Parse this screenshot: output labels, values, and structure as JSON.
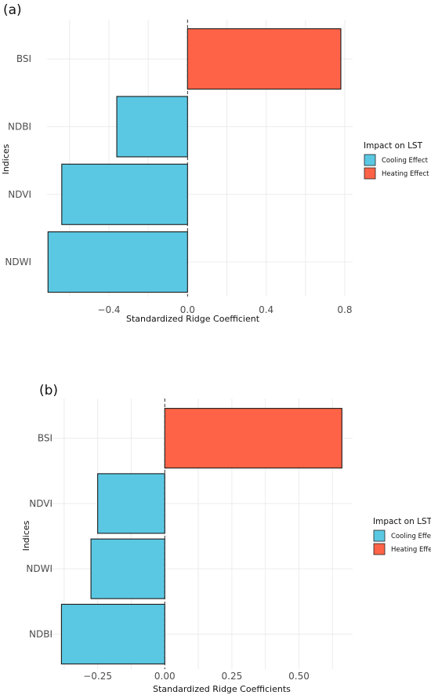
{
  "chart_data": [
    {
      "type": "bar",
      "orientation": "horizontal",
      "panel_label": "(a)",
      "categories": [
        "BSI",
        "NDBI",
        "NDVI",
        "NDWI"
      ],
      "values": [
        0.78,
        -0.36,
        -0.64,
        -0.71
      ],
      "effects": [
        "Heating Effect",
        "Cooling Effect",
        "Cooling Effect",
        "Cooling Effect"
      ],
      "xlabel": "Standardized Ridge Coefficient",
      "ylabel": "Indices",
      "xticks": [
        -0.4,
        0.0,
        0.4,
        0.8
      ],
      "xtick_labels": [
        "−0.4",
        "0.0",
        "0.4",
        "0.8"
      ],
      "xlim": [
        -0.715,
        0.84
      ],
      "reference_line": 0,
      "grid": true,
      "legend": {
        "title": "Impact on LST",
        "position": "right",
        "entries": [
          {
            "label": "Cooling Effect",
            "color": "#5bc8e3"
          },
          {
            "label": "Heating Effect",
            "color": "#ff6347"
          }
        ]
      }
    },
    {
      "type": "bar",
      "orientation": "horizontal",
      "panel_label": "(b)",
      "categories": [
        "BSI",
        "NDVI",
        "NDWI",
        "NDBI"
      ],
      "values": [
        0.66,
        -0.25,
        -0.275,
        -0.385
      ],
      "effects": [
        "Heating Effect",
        "Cooling Effect",
        "Cooling Effect",
        "Cooling Effect"
      ],
      "xlabel": "Standardized Ridge Coefficients",
      "ylabel": "Indices",
      "xticks": [
        -0.25,
        0.0,
        0.25,
        0.5
      ],
      "xtick_labels": [
        "−0.25",
        "0.00",
        "0.25",
        "0.50"
      ],
      "xlim": [
        -0.43,
        0.7
      ],
      "reference_line": 0,
      "grid": true,
      "legend": {
        "title": "Impact on LST",
        "position": "right",
        "entries": [
          {
            "label": "Cooling Effect",
            "color": "#5bc8e3"
          },
          {
            "label": "Heating Effect",
            "color": "#ff6347"
          }
        ]
      }
    }
  ]
}
